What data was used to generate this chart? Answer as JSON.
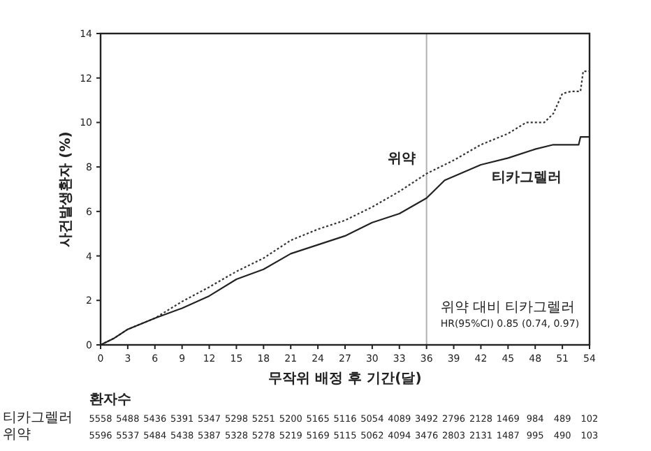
{
  "chart_data": {
    "type": "line",
    "ylabel": "사건발생환자 (%)",
    "xlabel": "무작위 배정 후 기간(달)",
    "xlim": [
      0,
      54
    ],
    "xticks": [
      0,
      3,
      6,
      9,
      12,
      15,
      18,
      21,
      24,
      27,
      30,
      33,
      36,
      39,
      42,
      45,
      48,
      51,
      54
    ],
    "ylim": [
      0,
      14
    ],
    "yticks": [
      0,
      2,
      4,
      6,
      8,
      10,
      12,
      14
    ],
    "grid": false,
    "ref_lines": [
      {
        "axis": "x",
        "value": 36,
        "color": "#b0b0b0"
      }
    ],
    "series": [
      {
        "name": "위약",
        "color": "#333333",
        "line_style": "dotted",
        "x": [
          0,
          1.5,
          3,
          4.5,
          6,
          9,
          12,
          15,
          18,
          21,
          24,
          27,
          30,
          33,
          36,
          39,
          42,
          45,
          47,
          49,
          50,
          51,
          52,
          53,
          53.3,
          54
        ],
        "values": [
          0,
          0.3,
          0.7,
          0.95,
          1.2,
          1.95,
          2.6,
          3.3,
          3.9,
          4.7,
          5.2,
          5.6,
          6.2,
          6.9,
          7.7,
          8.3,
          9.0,
          9.5,
          10.0,
          10.0,
          10.4,
          11.3,
          11.4,
          11.4,
          12.3,
          12.3
        ]
      },
      {
        "name": "티카그렐러",
        "color": "#222222",
        "line_style": "solid",
        "x": [
          0,
          1.5,
          3,
          4.5,
          6,
          9,
          12,
          15,
          18,
          21,
          24,
          27,
          30,
          33,
          36,
          38,
          42,
          45,
          48,
          50,
          52.8,
          53,
          54
        ],
        "values": [
          0,
          0.3,
          0.7,
          0.95,
          1.2,
          1.65,
          2.2,
          2.95,
          3.4,
          4.1,
          4.5,
          4.9,
          5.5,
          5.9,
          6.6,
          7.4,
          8.1,
          8.4,
          8.8,
          9.0,
          9.0,
          9.35,
          9.35
        ]
      }
    ],
    "annotations": [
      "위약 대비 티카그렐러",
      "HR(95%CI) 0.85 (0.74, 0.97)",
      "환자수",
      "티카그렐러 5558 5488 5436 5391 5347 5298 5251 5200 5165 5116 5054 4089 3492 2796 2128 1469 984 489 102",
      "위약 5596 5537 5484 5438 5387 5328 5278 5219 5169 5115 5062 4094 3476 2803 2131 1487 995 490 103"
    ]
  }
}
